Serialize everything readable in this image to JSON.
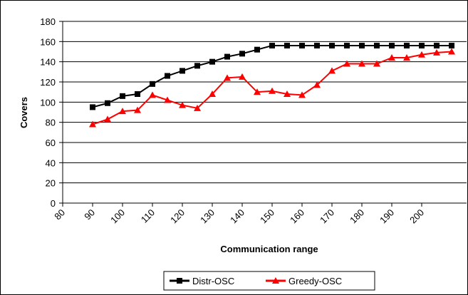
{
  "chart_data": {
    "type": "line",
    "x_label": "Communication range",
    "y_label": "Covers",
    "x": [
      90,
      95,
      100,
      105,
      110,
      115,
      120,
      125,
      130,
      135,
      140,
      145,
      150,
      155,
      160,
      165,
      170,
      175,
      180,
      185,
      190,
      195,
      200,
      205,
      210
    ],
    "series": [
      {
        "name": "Distr-OSC",
        "color": "#000000",
        "marker": "square",
        "values": [
          95,
          99,
          106,
          108,
          118,
          126,
          131,
          136,
          140,
          145,
          148,
          152,
          156,
          156,
          156,
          156,
          156,
          156,
          156,
          156,
          156,
          156,
          156,
          156,
          156
        ]
      },
      {
        "name": "Greedy-OSC",
        "color": "#ff0000",
        "marker": "triangle",
        "values": [
          78,
          83,
          91,
          92,
          107,
          102,
          97,
          94,
          108,
          124,
          125,
          110,
          111,
          108,
          107,
          117,
          131,
          138,
          138,
          138,
          144,
          144,
          147,
          149,
          150
        ]
      }
    ],
    "xlim": [
      80,
      215
    ],
    "xticks": [
      80,
      90,
      100,
      110,
      120,
      130,
      140,
      150,
      160,
      170,
      180,
      190,
      200
    ],
    "ylim": [
      0,
      180
    ],
    "yticks": [
      0,
      20,
      40,
      60,
      80,
      100,
      120,
      140,
      160,
      180
    ],
    "grid": true,
    "legend": "bottom"
  }
}
